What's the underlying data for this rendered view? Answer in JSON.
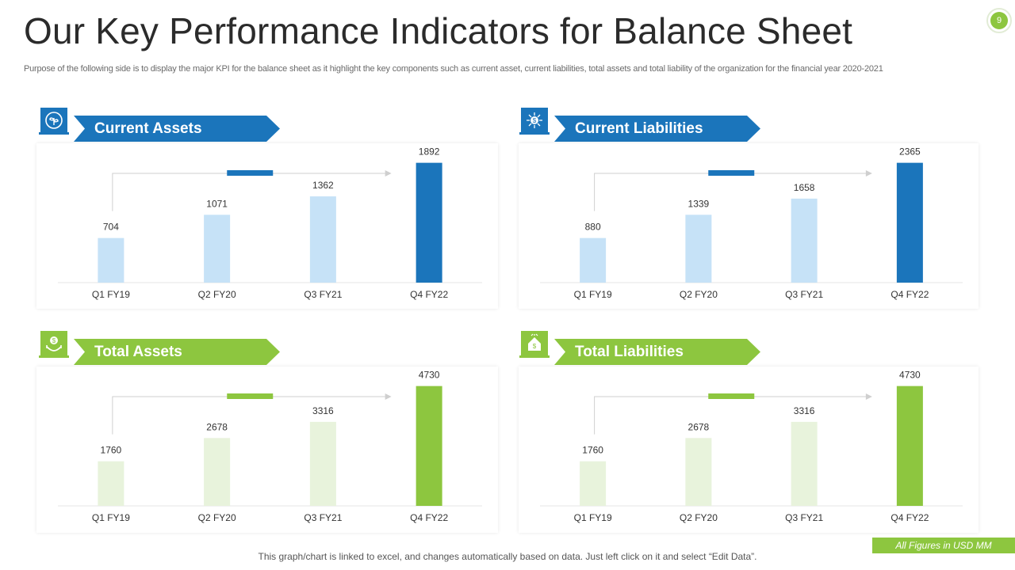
{
  "header": {
    "title": "Our Key Performance Indicators for Balance Sheet",
    "subtitle": "Purpose of the following side is to display the major KPI for the balance sheet as it highlight the key components such as current asset, current liabilities, total assets and total liability of the organization for the financial year 2020-2021",
    "page_number": "9"
  },
  "colors": {
    "blue_dark": "#1b75bb",
    "blue_light": "#c6e2f7",
    "green_dark": "#8dc63f",
    "green_light": "#e8f3dc"
  },
  "panels": [
    {
      "title": "Current Assets",
      "theme": "blue",
      "icon": "money-plant-icon"
    },
    {
      "title": "Current Liabilities",
      "theme": "blue",
      "icon": "dollar-network-icon"
    },
    {
      "title": "Total Assets",
      "theme": "green",
      "icon": "hand-coin-icon"
    },
    {
      "title": "Total Liabilities",
      "theme": "green",
      "icon": "house-dollar-icon"
    }
  ],
  "chart_data": [
    {
      "type": "bar",
      "title": "Current Assets",
      "categories": [
        "Q1 FY19",
        "Q2 FY20",
        "Q3 FY21",
        "Q4 FY22"
      ],
      "values": [
        704,
        1071,
        1362,
        1892
      ],
      "ylim": [
        0,
        2000
      ],
      "grid": false
    },
    {
      "type": "bar",
      "title": "Current Liabilities",
      "categories": [
        "Q1 FY19",
        "Q2 FY20",
        "Q3 FY21",
        "Q4 FY22"
      ],
      "values": [
        880,
        1339,
        1658,
        2365
      ],
      "ylim": [
        0,
        2500
      ],
      "grid": false
    },
    {
      "type": "bar",
      "title": "Total Assets",
      "categories": [
        "Q1 FY19",
        "Q2 FY20",
        "Q3 FY21",
        "Q4 FY22"
      ],
      "values": [
        1760,
        2678,
        3316,
        4730
      ],
      "ylim": [
        0,
        5000
      ],
      "grid": false
    },
    {
      "type": "bar",
      "title": "Total Liabilities",
      "categories": [
        "Q1 FY19",
        "Q2 FY20",
        "Q3 FY21",
        "Q4 FY22"
      ],
      "values": [
        1760,
        2678,
        3316,
        4730
      ],
      "ylim": [
        0,
        5000
      ],
      "grid": false
    }
  ],
  "footer": {
    "note": "This graph/chart is linked to excel,  and changes automatically based on data. Just left click on it and select “Edit Data”.",
    "figures_label": "All Figures in USD MM"
  }
}
